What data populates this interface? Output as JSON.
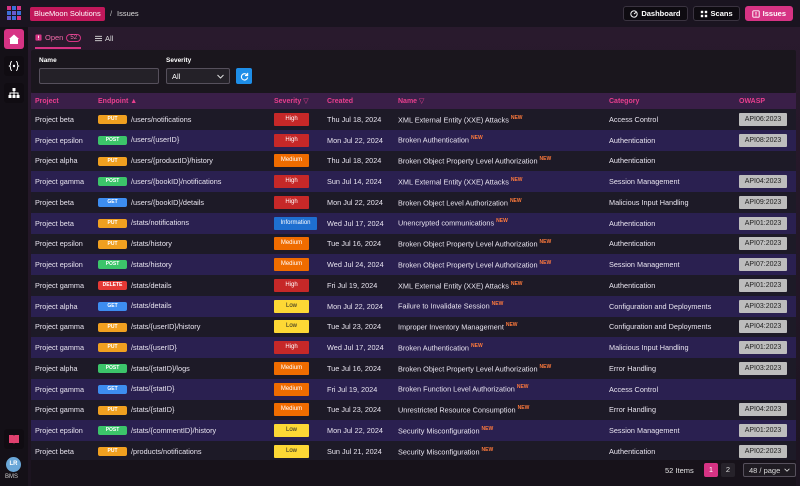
{
  "breadcrumb": {
    "org": "BlueMoon Solutions",
    "separator": "/",
    "page": "Issues"
  },
  "top_nav": {
    "dashboard": "Dashboard",
    "scans": "Scans",
    "issues": "Issues"
  },
  "sidebar": {
    "avatar_initials": "LR",
    "avatar_org": "BMS"
  },
  "tabs": {
    "open_label": "Open",
    "open_count": "52",
    "all_label": "All"
  },
  "filters": {
    "name_label": "Name",
    "name_value": "",
    "name_placeholder": "",
    "severity_label": "Severity",
    "severity_value": "All"
  },
  "columns": {
    "project": "Project",
    "endpoint": "Endpoint",
    "severity": "Severity",
    "created": "Created",
    "name": "Name",
    "category": "Category",
    "owasp": "OWASP"
  },
  "new_label": "NEW",
  "colors": {
    "accent": "#d63384",
    "methods": {
      "PUT": "#f0a020",
      "POST": "#3cc46a",
      "GET": "#3d8df0",
      "DELETE": "#e53935"
    },
    "severity": {
      "High": "#c62828",
      "Medium": "#ef6c00",
      "Low": "#fdd835",
      "Information": "#1e6fd0"
    }
  },
  "rows": [
    {
      "project": "Project beta",
      "method": "PUT",
      "endpoint": "/users/notifications",
      "severity": "High",
      "created": "Thu Jul 18, 2024",
      "name": "XML External Entity (XXE) Attacks",
      "category": "Access Control",
      "owasp": "API06:2023"
    },
    {
      "project": "Project epsilon",
      "method": "POST",
      "endpoint": "/users/{userID}",
      "severity": "High",
      "created": "Mon Jul 22, 2024",
      "name": "Broken Authentication",
      "category": "Authentication",
      "owasp": "API08:2023"
    },
    {
      "project": "Project alpha",
      "method": "PUT",
      "endpoint": "/users/{productID}/history",
      "severity": "Medium",
      "created": "Thu Jul 18, 2024",
      "name": "Broken Object Property Level Authorization",
      "category": "Authentication",
      "owasp": ""
    },
    {
      "project": "Project gamma",
      "method": "POST",
      "endpoint": "/users/{bookID}/notifications",
      "severity": "High",
      "created": "Sun Jul 14, 2024",
      "name": "XML External Entity (XXE) Attacks",
      "category": "Session Management",
      "owasp": "API04:2023"
    },
    {
      "project": "Project beta",
      "method": "GET",
      "endpoint": "/users/{bookID}/details",
      "severity": "High",
      "created": "Mon Jul 22, 2024",
      "name": "Broken Object Level Authorization",
      "category": "Malicious Input Handling",
      "owasp": "API09:2023"
    },
    {
      "project": "Project beta",
      "method": "PUT",
      "endpoint": "/stats/notifications",
      "severity": "Information",
      "created": "Wed Jul 17, 2024",
      "name": "Unencrypted communications",
      "category": "Authentication",
      "owasp": "API01:2023"
    },
    {
      "project": "Project epsilon",
      "method": "PUT",
      "endpoint": "/stats/history",
      "severity": "Medium",
      "created": "Tue Jul 16, 2024",
      "name": "Broken Object Property Level Authorization",
      "category": "Authentication",
      "owasp": "API07:2023"
    },
    {
      "project": "Project epsilon",
      "method": "POST",
      "endpoint": "/stats/history",
      "severity": "Medium",
      "created": "Wed Jul 24, 2024",
      "name": "Broken Object Property Level Authorization",
      "category": "Session Management",
      "owasp": "API07:2023"
    },
    {
      "project": "Project gamma",
      "method": "DELETE",
      "endpoint": "/stats/details",
      "severity": "High",
      "created": "Fri Jul 19, 2024",
      "name": "XML External Entity (XXE) Attacks",
      "category": "Authentication",
      "owasp": "API01:2023"
    },
    {
      "project": "Project alpha",
      "method": "GET",
      "endpoint": "/stats/details",
      "severity": "Low",
      "created": "Mon Jul 22, 2024",
      "name": "Failure to Invalidate Session",
      "category": "Configuration and Deployments",
      "owasp": "API03:2023"
    },
    {
      "project": "Project gamma",
      "method": "PUT",
      "endpoint": "/stats/{userID}/history",
      "severity": "Low",
      "created": "Tue Jul 23, 2024",
      "name": "Improper Inventory Management",
      "category": "Configuration and Deployments",
      "owasp": "API04:2023"
    },
    {
      "project": "Project gamma",
      "method": "PUT",
      "endpoint": "/stats/{userID}",
      "severity": "High",
      "created": "Wed Jul 17, 2024",
      "name": "Broken Authentication",
      "category": "Malicious Input Handling",
      "owasp": "API01:2023"
    },
    {
      "project": "Project alpha",
      "method": "POST",
      "endpoint": "/stats/{statID}/logs",
      "severity": "Medium",
      "created": "Tue Jul 16, 2024",
      "name": "Broken Object Property Level Authorization",
      "category": "Error Handling",
      "owasp": "API03:2023"
    },
    {
      "project": "Project gamma",
      "method": "GET",
      "endpoint": "/stats/{statID}",
      "severity": "Medium",
      "created": "Fri Jul 19, 2024",
      "name": "Broken Function Level Authorization",
      "category": "Access Control",
      "owasp": ""
    },
    {
      "project": "Project gamma",
      "method": "PUT",
      "endpoint": "/stats/{statID}",
      "severity": "Medium",
      "created": "Tue Jul 23, 2024",
      "name": "Unrestricted Resource Consumption",
      "category": "Error Handling",
      "owasp": "API04:2023"
    },
    {
      "project": "Project epsilon",
      "method": "POST",
      "endpoint": "/stats/{commentID}/history",
      "severity": "Low",
      "created": "Mon Jul 22, 2024",
      "name": "Security Misconfiguration",
      "category": "Session Management",
      "owasp": "API01:2023"
    },
    {
      "project": "Project beta",
      "method": "PUT",
      "endpoint": "/products/notifications",
      "severity": "Low",
      "created": "Sun Jul 21, 2024",
      "name": "Security Misconfiguration",
      "category": "Authentication",
      "owasp": "API02:2023"
    }
  ],
  "footer": {
    "items_label": "52 Items",
    "pages": [
      "1",
      "2"
    ],
    "page_size": "48 / page"
  }
}
